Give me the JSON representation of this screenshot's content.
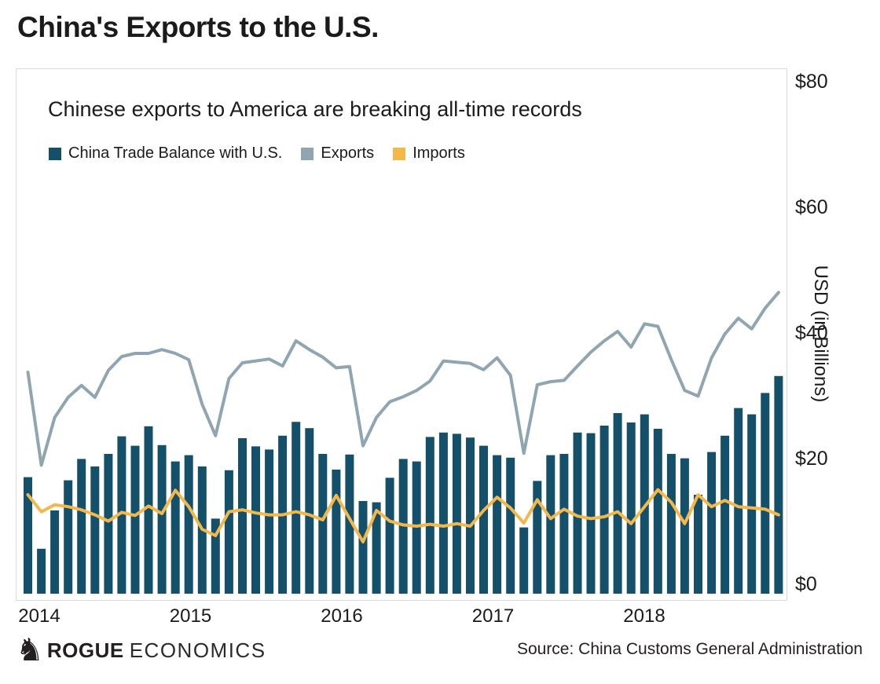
{
  "page_title": "China's Exports to the U.S.",
  "chart": {
    "subtitle": "Chinese exports to America are breaking all-time records",
    "y_axis_title": "USD (in Billions)"
  },
  "footer": {
    "knight_icon": "♞",
    "logo_bold": "ROGUE",
    "logo_light": "ECONOMICS",
    "source": "Source: China Customs General Administration"
  },
  "chart_data": {
    "type": "bar",
    "subtype": "combo-bar-and-lines",
    "title": "Chinese exports to America are breaking all-time records",
    "x_start": "Jan 2014",
    "x_end": "Sep 2018",
    "x_frequency": "monthly",
    "x_tick_labels": [
      "2014",
      "2015",
      "2016",
      "2017",
      "2018"
    ],
    "y_tick_labels": [
      "$0",
      "$20",
      "$40",
      "$60",
      "$80"
    ],
    "y_ticks": [
      0,
      20,
      40,
      60,
      80
    ],
    "ylim": [
      0,
      80
    ],
    "ylabel": "USD (in Billions)",
    "grid": false,
    "legend_position": "top-left",
    "series": [
      {
        "name": "China Trade Balance with U.S.",
        "type": "bar",
        "color": "#15506b",
        "values": [
          17.8,
          6.4,
          12.5,
          17.3,
          20.7,
          19.5,
          21.5,
          24.3,
          22.8,
          25.9,
          22.9,
          20.3,
          21.3,
          19.5,
          11.2,
          18.9,
          24.0,
          22.7,
          22.2,
          24.4,
          26.6,
          25.6,
          21.5,
          19.0,
          21.4,
          14.0,
          13.8,
          17.7,
          20.7,
          20.3,
          24.2,
          24.9,
          24.7,
          24.1,
          22.8,
          21.3,
          20.9,
          9.8,
          17.2,
          21.3,
          21.5,
          24.9,
          24.8,
          26.0,
          28.0,
          26.5,
          27.8,
          25.5,
          21.5,
          20.8,
          15.0,
          21.8,
          24.4,
          28.8,
          27.8,
          31.2,
          33.9
        ]
      },
      {
        "name": "Exports",
        "type": "line",
        "color": "#8fa5b2",
        "values": [
          34.5,
          19.7,
          27.3,
          30.5,
          32.4,
          30.5,
          34.8,
          37.0,
          37.5,
          37.5,
          38.1,
          37.5,
          36.5,
          29.4,
          24.4,
          33.5,
          36.0,
          36.3,
          36.6,
          35.5,
          39.5,
          38.1,
          36.9,
          35.2,
          35.4,
          22.8,
          27.3,
          29.8,
          30.6,
          31.6,
          33.1,
          36.3,
          36.1,
          35.9,
          34.9,
          36.8,
          34.0,
          21.6,
          32.5,
          33.0,
          33.2,
          35.5,
          37.7,
          39.5,
          41.0,
          38.5,
          42.2,
          41.8,
          36.5,
          31.6,
          30.7,
          36.8,
          40.6,
          43.1,
          41.4,
          44.7,
          47.2
        ]
      },
      {
        "name": "Imports",
        "type": "line",
        "color": "#f2b84b",
        "values": [
          15.0,
          12.3,
          13.4,
          13.1,
          12.6,
          11.8,
          10.8,
          12.2,
          11.7,
          13.2,
          12.0,
          15.7,
          13.1,
          9.5,
          8.5,
          12.3,
          12.6,
          12.1,
          11.8,
          11.8,
          12.3,
          11.8,
          11.0,
          14.9,
          11.2,
          7.5,
          12.5,
          10.8,
          10.2,
          10.0,
          10.3,
          10.0,
          10.4,
          10.0,
          12.5,
          14.6,
          12.9,
          10.5,
          14.2,
          11.2,
          12.7,
          11.6,
          11.2,
          11.5,
          12.3,
          10.4,
          13.1,
          15.8,
          13.8,
          10.4,
          15.0,
          13.1,
          14.1,
          13.1,
          12.9,
          12.7,
          11.8
        ]
      }
    ]
  }
}
